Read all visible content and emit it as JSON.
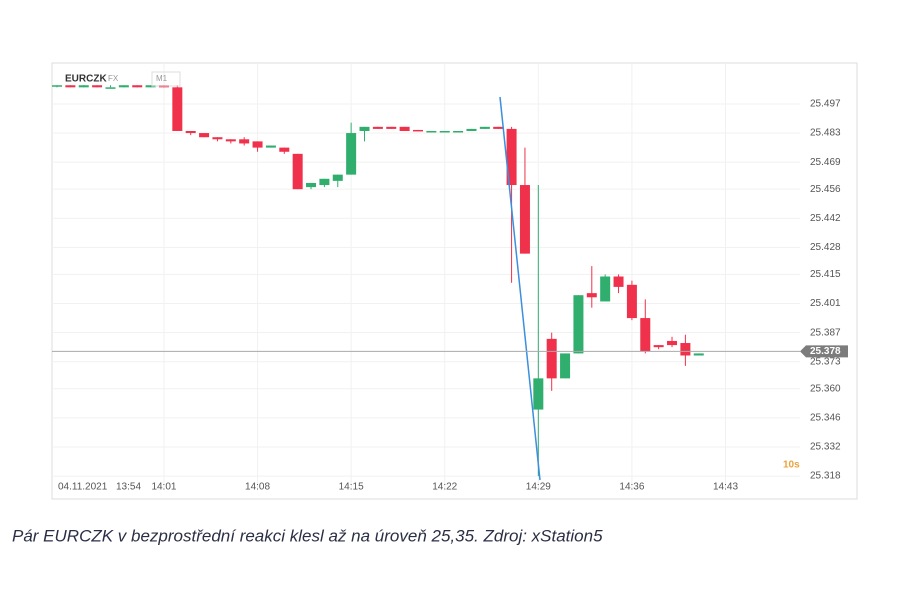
{
  "chart_data": {
    "type": "candlestick",
    "title": "EURCZK",
    "market": "FX",
    "interval": "M1",
    "timer": "10s",
    "start_labels": [
      "04.11.2021",
      "13:54"
    ],
    "categories": [
      null,
      null,
      null,
      null,
      null,
      null,
      null,
      null,
      "14:01",
      null,
      null,
      null,
      null,
      null,
      null,
      "14:08",
      null,
      null,
      null,
      null,
      null,
      null,
      "14:15",
      null,
      null,
      null,
      null,
      null,
      null,
      "14:22",
      null,
      null,
      null,
      null,
      null,
      null,
      "14:29",
      null,
      null,
      null,
      null,
      null,
      null,
      "14:36",
      null,
      null,
      null,
      null,
      null,
      null,
      "14:43"
    ],
    "open": [
      25.506,
      25.506,
      25.505,
      25.506,
      25.505,
      25.505,
      25.506,
      25.505,
      25.506,
      25.505,
      25.484,
      25.483,
      25.481,
      25.48,
      25.48,
      25.479,
      25.476,
      25.476,
      25.473,
      25.457,
      25.458,
      25.46,
      25.463,
      25.484,
      25.486,
      25.486,
      25.486,
      25.4845,
      25.484,
      25.484,
      25.484,
      25.484,
      25.485,
      25.486,
      25.485,
      25.458,
      25.35,
      25.384,
      25.365,
      25.377,
      25.406,
      25.402,
      25.414,
      25.41,
      25.394,
      25.381,
      25.383,
      25.382,
      25.376,
      null,
      null
    ],
    "high": [
      25.506,
      25.506,
      25.506,
      25.506,
      25.506,
      25.506,
      25.506,
      25.506,
      25.506,
      25.506,
      25.484,
      25.483,
      25.481,
      25.48,
      25.481,
      25.479,
      25.477,
      25.476,
      25.473,
      25.459,
      25.461,
      25.463,
      25.488,
      25.486,
      25.486,
      25.486,
      25.486,
      25.4845,
      25.484,
      25.484,
      25.484,
      25.485,
      25.486,
      25.486,
      25.486,
      25.476,
      25.458,
      25.387,
      25.377,
      25.405,
      25.419,
      25.415,
      25.415,
      25.412,
      25.403,
      25.381,
      25.385,
      25.386,
      25.377,
      null,
      null
    ],
    "low": [
      25.505,
      25.505,
      25.505,
      25.505,
      25.505,
      25.505,
      25.505,
      25.505,
      25.505,
      25.484,
      25.482,
      25.481,
      25.479,
      25.478,
      25.477,
      25.474,
      25.476,
      25.473,
      25.456,
      25.456,
      25.457,
      25.457,
      25.463,
      25.479,
      25.485,
      25.485,
      25.484,
      25.484,
      25.484,
      25.484,
      25.484,
      25.484,
      25.485,
      25.485,
      25.411,
      25.425,
      25.318,
      25.359,
      25.365,
      25.377,
      25.399,
      25.402,
      25.406,
      25.393,
      25.377,
      25.379,
      25.38,
      25.371,
      25.376,
      null,
      null
    ],
    "close": [
      25.506,
      25.505,
      25.506,
      25.505,
      25.505,
      25.506,
      25.505,
      25.506,
      25.505,
      25.484,
      25.483,
      25.481,
      25.48,
      25.479,
      25.478,
      25.476,
      25.477,
      25.474,
      25.456,
      25.459,
      25.461,
      25.463,
      25.483,
      25.486,
      25.485,
      25.485,
      25.484,
      25.484,
      25.484,
      25.484,
      25.484,
      25.485,
      25.486,
      25.485,
      25.458,
      25.425,
      25.365,
      25.365,
      25.377,
      25.405,
      25.404,
      25.414,
      25.409,
      25.394,
      25.378,
      25.38,
      25.381,
      25.376,
      25.377,
      null,
      null
    ],
    "up_color": "#2fae6e",
    "down_color": "#f0314b",
    "ylim": [
      25.3113,
      25.5167
    ],
    "yticks": [
      25.318,
      25.332,
      25.346,
      {
        "value": 25.36,
        "label": "25.360"
      },
      25.373,
      25.387,
      25.401,
      25.415,
      25.428,
      25.442,
      25.456,
      25.469,
      25.483,
      25.497
    ],
    "last_price": 25.378,
    "grid": true
  },
  "caption": "Pár EURCZK v bezprostřední reakci klesl až na úroveň 25,35. Zdroj: xStation5"
}
